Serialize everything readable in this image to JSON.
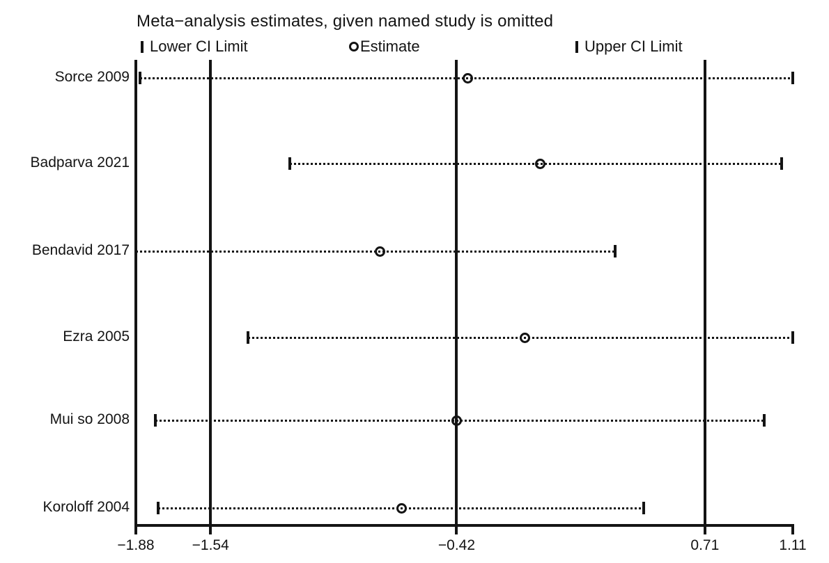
{
  "title": "Meta−analysis estimates, given named study is omitted",
  "legend": {
    "lower_label": "Lower CI Limit",
    "estimate_label": "Estimate",
    "upper_label": "Upper CI Limit"
  },
  "chart_data": {
    "type": "scatter",
    "subtype": "leave-one-out-meta-analysis-forest",
    "title": "Meta−analysis estimates, given named study is omitted",
    "legend_entries": [
      "Lower CI Limit",
      "Estimate",
      "Upper CI Limit"
    ],
    "series": [
      {
        "name": "Sorce 2009",
        "lower": -1.86,
        "estimate": -0.37,
        "upper": 1.11
      },
      {
        "name": "Badparva 2021",
        "lower": -1.18,
        "estimate": -0.04,
        "upper": 1.06
      },
      {
        "name": "Bendavid 2017",
        "lower": -1.88,
        "estimate": -0.77,
        "upper": 0.3
      },
      {
        "name": "Ezra 2005",
        "lower": -1.37,
        "estimate": -0.11,
        "upper": 1.11
      },
      {
        "name": "Mui so 2008",
        "lower": -1.79,
        "estimate": -0.42,
        "upper": 0.98
      },
      {
        "name": "Koroloff 2004",
        "lower": -1.78,
        "estimate": -0.67,
        "upper": 0.43
      }
    ],
    "xlim": [
      -1.88,
      1.11
    ],
    "x_ticks": [
      -1.88,
      -1.54,
      -0.42,
      0.71,
      1.11
    ],
    "x_tick_labels": [
      "−1.88",
      "−1.54",
      "−0.42",
      "0.71",
      "1.11"
    ],
    "reference_lines": [
      -1.88,
      -1.54,
      -0.42,
      0.71
    ],
    "grid": false,
    "legend_position": "top"
  },
  "colors": {
    "ink": "#141414",
    "background": "#ffffff"
  }
}
